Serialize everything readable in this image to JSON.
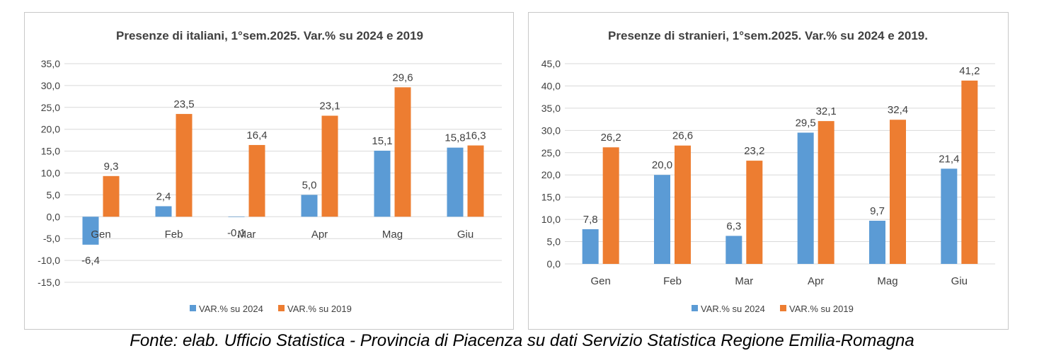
{
  "chart_data": [
    {
      "type": "bar",
      "title": "Presenze di italiani, 1°sem.2025. Var.% su 2024 e 2019",
      "categories": [
        "Gen",
        "Feb",
        "Mar",
        "Apr",
        "Mag",
        "Giu"
      ],
      "series": [
        {
          "name": "VAR.% su 2024",
          "values": [
            -6.4,
            2.4,
            -0.1,
            5.0,
            15.1,
            15.8
          ],
          "labels": [
            "-6,4",
            "2,4",
            "-0,1",
            "5,0",
            "15,1",
            "15,8"
          ],
          "color": "#5b9bd5"
        },
        {
          "name": "VAR.% su 2019",
          "values": [
            9.3,
            23.5,
            16.4,
            23.1,
            29.6,
            16.3
          ],
          "labels": [
            "9,3",
            "23,5",
            "16,4",
            "23,1",
            "29,6",
            "16,3"
          ],
          "color": "#ed7d31"
        }
      ],
      "ylim": [
        -15,
        35
      ],
      "yticks": [
        35,
        30,
        25,
        20,
        15,
        10,
        5,
        0,
        -5,
        -10,
        -15
      ],
      "ytick_labels": [
        "35,0",
        "30,0",
        "25,0",
        "20,0",
        "15,0",
        "10,0",
        "5,0",
        "0,0",
        "-5,0",
        "-10,0",
        "-15,0"
      ],
      "grid": true,
      "legend": "bottom"
    },
    {
      "type": "bar",
      "title": "Presenze di stranieri, 1°sem.2025. Var.% su 2024 e 2019.",
      "categories": [
        "Gen",
        "Feb",
        "Mar",
        "Apr",
        "Mag",
        "Giu"
      ],
      "series": [
        {
          "name": "VAR.% su 2024",
          "values": [
            7.8,
            20.0,
            6.3,
            29.5,
            9.7,
            21.4
          ],
          "labels": [
            "7,8",
            "20,0",
            "6,3",
            "29,5",
            "9,7",
            "21,4"
          ],
          "color": "#5b9bd5"
        },
        {
          "name": "VAR.% su 2019",
          "values": [
            26.2,
            26.6,
            23.2,
            32.1,
            32.4,
            41.2
          ],
          "labels": [
            "26,2",
            "26,6",
            "23,2",
            "32,1",
            "32,4",
            "41,2"
          ],
          "color": "#ed7d31"
        }
      ],
      "ylim": [
        0,
        45
      ],
      "yticks": [
        45,
        40,
        35,
        30,
        25,
        20,
        15,
        10,
        5,
        0
      ],
      "ytick_labels": [
        "45,0",
        "40,0",
        "35,0",
        "30,0",
        "25,0",
        "20,0",
        "15,0",
        "10,0",
        "5,0",
        "0,0"
      ],
      "grid": true,
      "legend": "bottom"
    }
  ],
  "source": "Fonte: elab. Ufficio Statistica - Provincia di Piacenza su dati Servizio Statistica Regione Emilia-Romagna"
}
